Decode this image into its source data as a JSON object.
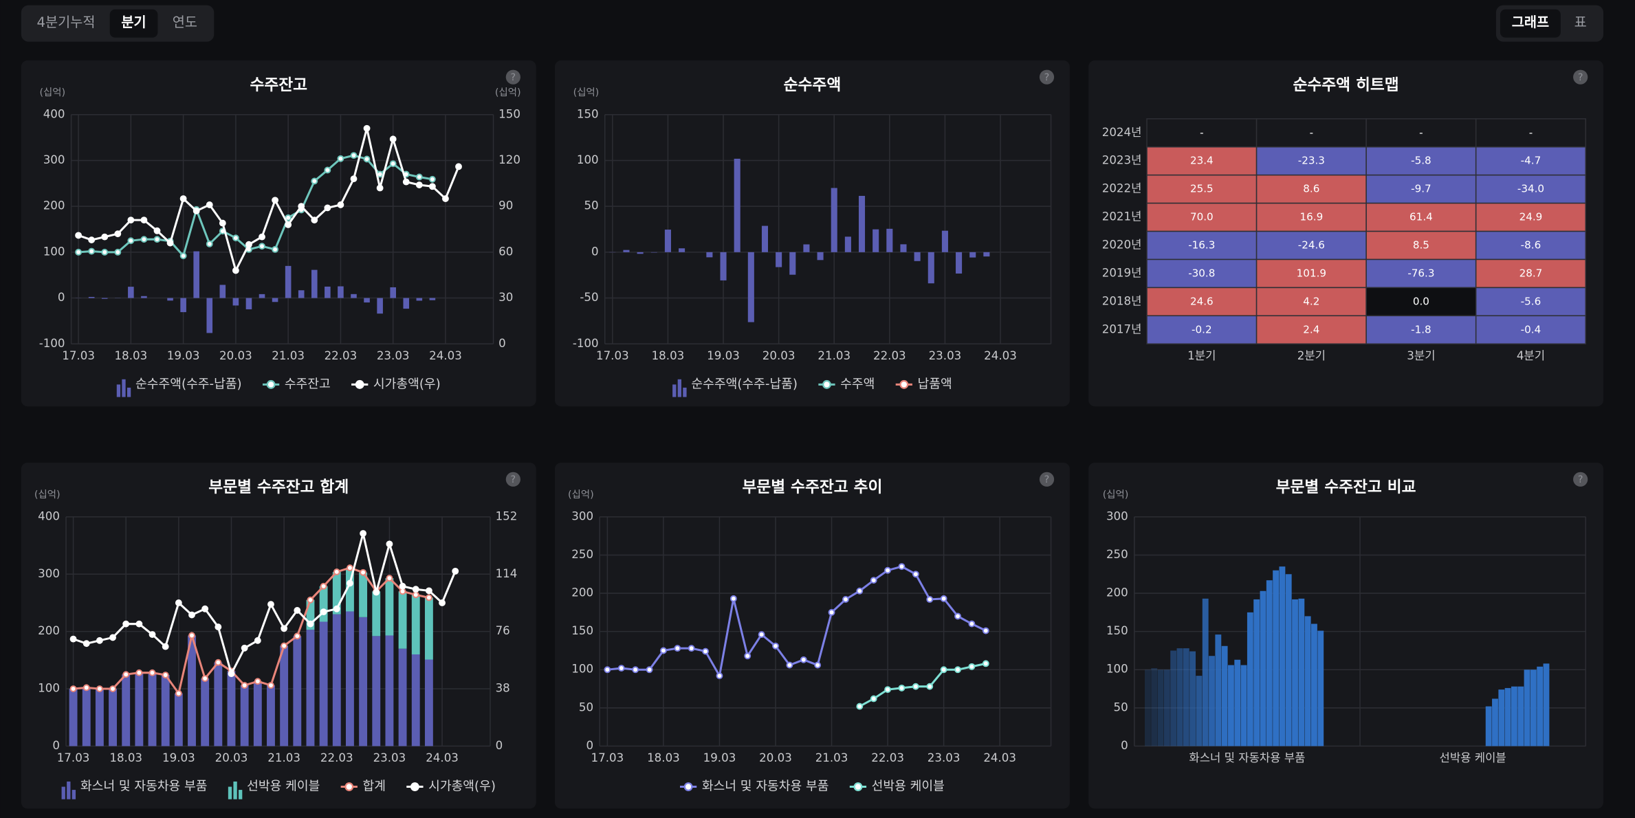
{
  "tabs": [
    "4분기누적",
    "분기",
    "연도"
  ],
  "active_tab": 1,
  "view_toggle": [
    "그래프",
    "표"
  ],
  "active_view": 0,
  "help_icon": "?",
  "chart_data": [
    {
      "type": "combo",
      "title": "수주잔고",
      "y_unit": "(십억)",
      "y2_unit": "(십억)",
      "categories": [
        "17.03",
        null,
        null,
        null,
        "18.03",
        null,
        null,
        null,
        "19.03",
        null,
        null,
        null,
        "20.03",
        null,
        null,
        null,
        "21.03",
        null,
        null,
        null,
        "22.03",
        null,
        null,
        null,
        "23.03",
        null,
        null,
        null,
        "24.03",
        null
      ],
      "series": [
        {
          "name": "순수주액(수주-납품)",
          "kind": "bar",
          "color": "#5b5eb3",
          "values": [
            -0.2,
            2.4,
            -1.8,
            -0.4,
            24.6,
            4.2,
            0,
            -5.6,
            -30.8,
            101.9,
            -76.3,
            28.7,
            -16.3,
            -24.6,
            8.5,
            -8.6,
            70,
            16.9,
            61.4,
            24.9,
            25.5,
            8.6,
            -9.7,
            -34,
            23.4,
            -23.3,
            -5.8,
            -4.7,
            null,
            null
          ]
        },
        {
          "name": "수주잔고",
          "kind": "line",
          "color": "#6ec6bc",
          "values": [
            100,
            102,
            100,
            100,
            125,
            128,
            128,
            124,
            92,
            193,
            118,
            146,
            131,
            106,
            113,
            106,
            175,
            192,
            255,
            279,
            304,
            311,
            303,
            270,
            293,
            270,
            264,
            259,
            null,
            null
          ]
        },
        {
          "name": "시가총액(우)",
          "kind": "line",
          "axis": "y2",
          "color": "#ffffff",
          "values": [
            71,
            68,
            70,
            72,
            81,
            81,
            74,
            66,
            95,
            87,
            91,
            79,
            48,
            65,
            70,
            94,
            78,
            90,
            81,
            89,
            91,
            108,
            141,
            102,
            134,
            106,
            104,
            103,
            95,
            116
          ]
        }
      ],
      "ylim": [
        -100,
        400
      ],
      "yticks": [
        -100,
        0,
        100,
        200,
        300,
        400
      ],
      "y2lim": [
        0,
        150
      ],
      "y2ticks": [
        0,
        30,
        60,
        90,
        120,
        150
      ],
      "grid": true
    },
    {
      "type": "bar",
      "title": "순수주액",
      "y_unit": "(십억)",
      "categories": [
        "17.03",
        null,
        null,
        null,
        "18.03",
        null,
        null,
        null,
        "19.03",
        null,
        null,
        null,
        "20.03",
        null,
        null,
        null,
        "21.03",
        null,
        null,
        null,
        "22.03",
        null,
        null,
        null,
        "23.03",
        null,
        null,
        null,
        "24.03",
        null
      ],
      "series": [
        {
          "name": "순수주액(수주-납품)",
          "kind": "bar",
          "color": "#5b5eb3",
          "values": [
            -0.2,
            2.4,
            -1.8,
            -0.4,
            24.6,
            4.2,
            0,
            -5.6,
            -30.8,
            101.9,
            -76.3,
            28.7,
            -16.3,
            -24.6,
            8.5,
            -8.6,
            70,
            16.9,
            61.4,
            24.9,
            25.5,
            8.6,
            -9.7,
            -34,
            23.4,
            -23.3,
            -5.8,
            -4.7,
            null,
            null
          ]
        },
        {
          "name": "수주액",
          "kind": "line",
          "color": "#6ec6bc",
          "visible": false
        },
        {
          "name": "납품액",
          "kind": "line",
          "color": "#e8857a",
          "visible": false
        }
      ],
      "ylim": [
        -100,
        150
      ],
      "yticks": [
        -100,
        -50,
        0,
        50,
        100,
        150
      ],
      "grid": true
    },
    {
      "type": "heatmap",
      "title": "순수주액 히트맵",
      "rows": [
        "2024년",
        "2023년",
        "2022년",
        "2021년",
        "2020년",
        "2019년",
        "2018년",
        "2017년"
      ],
      "columns": [
        "1분기",
        "2분기",
        "3분기",
        "4분기"
      ],
      "values": [
        [
          null,
          null,
          null,
          null
        ],
        [
          23.4,
          -23.3,
          -5.8,
          -4.7
        ],
        [
          25.5,
          8.6,
          -9.7,
          -34
        ],
        [
          70,
          16.9,
          61.4,
          24.9
        ],
        [
          -16.3,
          -24.6,
          8.5,
          -8.6
        ],
        [
          -30.8,
          101.9,
          -76.3,
          28.7
        ],
        [
          24.6,
          4.2,
          0,
          -5.6
        ],
        [
          -0.2,
          2.4,
          -1.8,
          -0.4
        ]
      ],
      "value_labels": [
        [
          "-",
          "-",
          "-",
          "-"
        ],
        [
          "23.4",
          "-23.3",
          "-5.8",
          "-4.7"
        ],
        [
          "25.5",
          "8.6",
          "-9.7",
          "-34.0"
        ],
        [
          "70.0",
          "16.9",
          "61.4",
          "24.9"
        ],
        [
          "-16.3",
          "-24.6",
          "8.5",
          "-8.6"
        ],
        [
          "-30.8",
          "101.9",
          "-76.3",
          "28.7"
        ],
        [
          "24.6",
          "4.2",
          "0.0",
          "-5.6"
        ],
        [
          "-0.2",
          "2.4",
          "-1.8",
          "-0.4"
        ]
      ],
      "colors": {
        "positive": "#c95b5b",
        "negative": "#5b5eb5",
        "zero": "#0e0f12",
        "empty": "#17181c"
      }
    },
    {
      "type": "combo",
      "title": "부문별 수주잔고 합계",
      "y_unit": "(십억)",
      "stacked": true,
      "categories": [
        "17.03",
        null,
        null,
        null,
        "18.03",
        null,
        null,
        null,
        "19.03",
        null,
        null,
        null,
        "20.03",
        null,
        null,
        null,
        "21.03",
        null,
        null,
        null,
        "22.03",
        null,
        null,
        null,
        "23.03",
        null,
        null,
        null,
        "24.03",
        null
      ],
      "series": [
        {
          "name": "화스너 및 자동차용 부품",
          "kind": "bar",
          "color": "#5b5eb3",
          "values": [
            100,
            102,
            100,
            100,
            125,
            128,
            128,
            124,
            92,
            193,
            118,
            146,
            131,
            106,
            113,
            106,
            175,
            192,
            203,
            217,
            230,
            235,
            225,
            192,
            193,
            170,
            160,
            151,
            null,
            null
          ]
        },
        {
          "name": "선박용 케이블",
          "kind": "bar",
          "color": "#5ec3bb",
          "values": [
            null,
            null,
            null,
            null,
            null,
            null,
            null,
            null,
            null,
            null,
            null,
            null,
            null,
            null,
            null,
            null,
            null,
            null,
            52,
            62,
            74,
            76,
            78,
            78,
            100,
            100,
            104,
            108,
            null,
            null
          ]
        },
        {
          "name": "합계",
          "kind": "line",
          "color": "#e8857a",
          "values": [
            100,
            102,
            100,
            100,
            125,
            128,
            128,
            124,
            92,
            193,
            118,
            146,
            131,
            106,
            113,
            106,
            175,
            192,
            255,
            279,
            304,
            311,
            303,
            270,
            293,
            270,
            264,
            259,
            null,
            null
          ]
        },
        {
          "name": "시가총액(우)",
          "kind": "line",
          "axis": "y2",
          "color": "#ffffff",
          "values": [
            71,
            68,
            70,
            72,
            81,
            81,
            74,
            66,
            95,
            87,
            91,
            79,
            48,
            65,
            70,
            94,
            78,
            90,
            81,
            89,
            91,
            108,
            141,
            102,
            134,
            106,
            104,
            103,
            95,
            116
          ]
        }
      ],
      "ylim": [
        0,
        400
      ],
      "yticks": [
        0,
        100,
        200,
        300,
        400
      ],
      "y2lim": [
        0,
        152
      ],
      "y2ticks": [
        0,
        38,
        76,
        114,
        152
      ],
      "grid": true
    },
    {
      "type": "line",
      "title": "부문별 수주잔고 추이",
      "y_unit": "(십억)",
      "categories": [
        "17.03",
        null,
        null,
        null,
        "18.03",
        null,
        null,
        null,
        "19.03",
        null,
        null,
        null,
        "20.03",
        null,
        null,
        null,
        "21.03",
        null,
        null,
        null,
        "22.03",
        null,
        null,
        null,
        "23.03",
        null,
        null,
        null,
        "24.03",
        null
      ],
      "series": [
        {
          "name": "화스너 및 자동차용 부품",
          "kind": "line",
          "color": "#7c80e6",
          "values": [
            100,
            102,
            100,
            100,
            125,
            128,
            128,
            124,
            92,
            193,
            118,
            146,
            131,
            106,
            113,
            106,
            175,
            192,
            203,
            217,
            230,
            235,
            225,
            192,
            193,
            170,
            160,
            151,
            null,
            null
          ]
        },
        {
          "name": "선박용 케이블",
          "kind": "line",
          "color": "#7ee0d4",
          "values": [
            null,
            null,
            null,
            null,
            null,
            null,
            null,
            null,
            null,
            null,
            null,
            null,
            null,
            null,
            null,
            null,
            null,
            null,
            52,
            62,
            74,
            76,
            78,
            78,
            100,
            100,
            104,
            108,
            null,
            null
          ]
        }
      ],
      "ylim": [
        0,
        300
      ],
      "yticks": [
        0,
        50,
        100,
        150,
        200,
        250,
        300
      ],
      "grid": true
    },
    {
      "type": "grouped_bar",
      "title": "부문별 수주잔고 비교",
      "y_unit": "(십억)",
      "categories": [
        "화스너 및 자동차용 부품",
        "선박용 케이블"
      ],
      "values": [
        [
          100,
          102,
          100,
          100,
          125,
          128,
          128,
          124,
          92,
          193,
          118,
          146,
          131,
          106,
          113,
          106,
          175,
          192,
          203,
          217,
          230,
          235,
          225,
          192,
          193,
          170,
          160,
          151
        ],
        [
          null,
          null,
          null,
          null,
          null,
          null,
          null,
          null,
          null,
          null,
          null,
          null,
          null,
          null,
          null,
          null,
          null,
          null,
          52,
          62,
          74,
          76,
          78,
          78,
          100,
          100,
          104,
          108
        ]
      ],
      "color": "#2f70c4",
      "ylim": [
        0,
        300
      ],
      "yticks": [
        0,
        50,
        100,
        150,
        200,
        250,
        300
      ],
      "grid": true
    }
  ]
}
